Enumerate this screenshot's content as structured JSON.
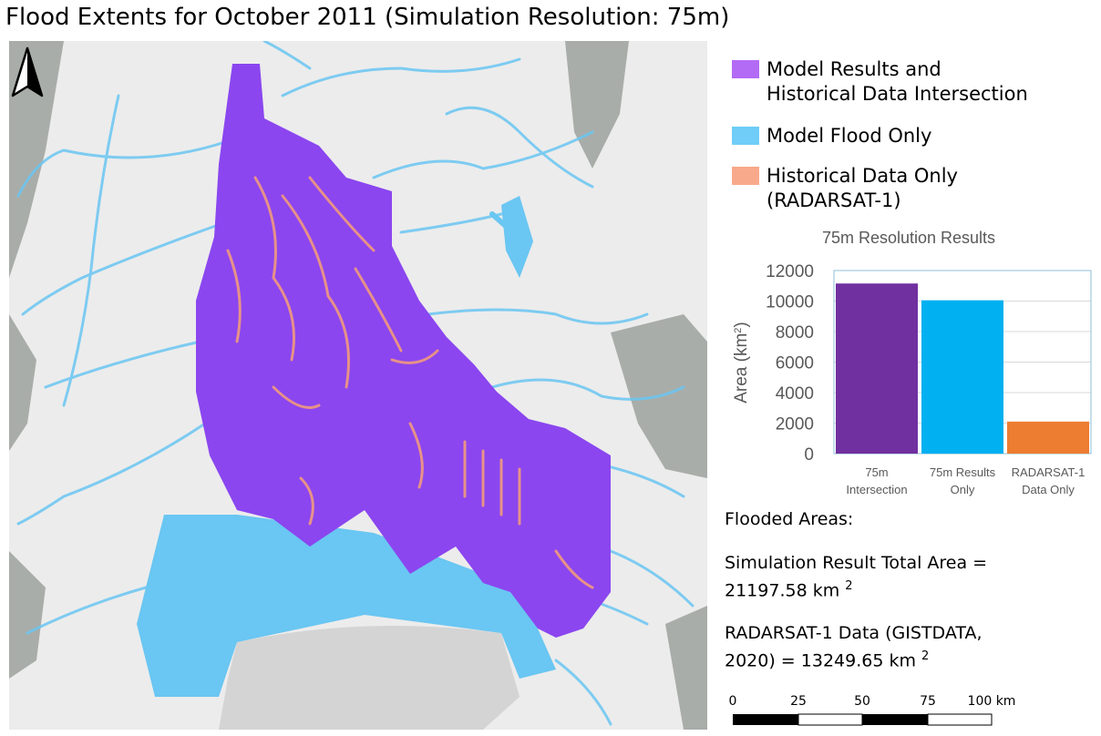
{
  "title": "Flood Extents for October 2011 (Simulation Resolution: 75m)",
  "north_arrow_icon": "north-arrow-icon",
  "legend": [
    {
      "label_lines": [
        "Model Results and",
        "Historical Data Intersection"
      ],
      "color": "#b36bf5"
    },
    {
      "label_lines": [
        "Model Flood Only"
      ],
      "color": "#6fcdf7"
    },
    {
      "label_lines": [
        "Historical Data Only",
        "(RADARSAT-1)"
      ],
      "color": "#f8a98c"
    }
  ],
  "map_colors": {
    "intersection": "#8b46ef",
    "model_only": "#6ac6f2",
    "historical_only": "#f29a7e",
    "land": "#ececec",
    "terrain": "#a9ada9",
    "water": "#d4d4d4"
  },
  "chart_data": {
    "type": "bar",
    "title": "75m Resolution Results",
    "xlabel": "",
    "ylabel": "Area (km²)",
    "categories": [
      [
        "75m",
        "Intersection"
      ],
      [
        "75m Results",
        "Only"
      ],
      [
        "RADARSAT-1",
        "Data Only"
      ]
    ],
    "values": [
      11150,
      10050,
      2100
    ],
    "colors": [
      "#7030a0",
      "#00b0f0",
      "#ed7d31"
    ],
    "ylim": [
      0,
      12000
    ],
    "yticks": [
      0,
      2000,
      4000,
      6000,
      8000,
      10000,
      12000
    ],
    "grid": true,
    "legend": "none"
  },
  "stats": {
    "heading": "Flooded Areas:",
    "sim_line1": "Simulation Result Total Area =",
    "sim_line2": "21197.58 km",
    "radar_line1": "RADARSAT-1 Data (GISTDATA,",
    "radar_line2": "2020) = 13249.65 km",
    "sup": "2"
  },
  "scale_bar": {
    "labels": [
      "0",
      "25",
      "50",
      "75",
      "100 km"
    ]
  }
}
